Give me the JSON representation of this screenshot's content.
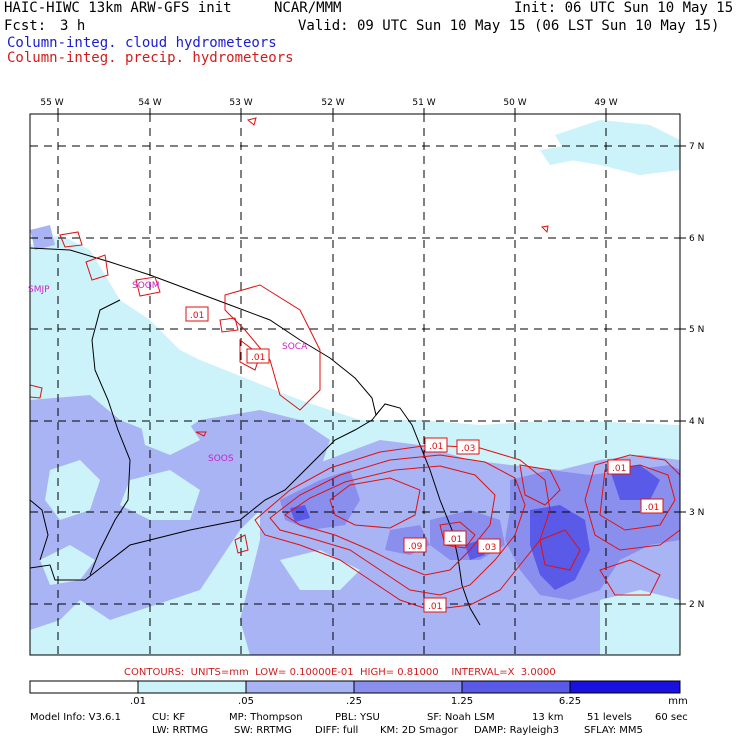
{
  "header": {
    "title_left": "HAIC-HIWC 13km ARW-GFS init",
    "org": "NCAR/MMM",
    "init": "Init: 06 UTC Sun 10 May 15",
    "fcst_label": "Fcst:",
    "fcst_value": "3 h",
    "valid": "Valid: 09 UTC Sun 10 May 15 (06 LST Sun 10 May 15)",
    "field1": "Column-integ. cloud hydrometeors",
    "field2": "Column-integ. precip. hydrometeors"
  },
  "map": {
    "lon_labels": [
      "55 W",
      "54 W",
      "53 W",
      "52 W",
      "51 W",
      "50 W",
      "49 W"
    ],
    "lat_labels": [
      "7 N",
      "6 N",
      "5 N",
      "4 N",
      "3 N",
      "2 N"
    ],
    "stations": [
      "SMJP",
      "SOGM",
      "SOCA",
      "SOOS"
    ],
    "contour_labels": [
      ".01",
      ".01",
      ".01",
      ".03",
      ".01",
      ".01",
      ".09",
      ".01",
      ".03",
      ".01"
    ]
  },
  "contour_info": "CONTOURS:  UNITS=mm  LOW= 0.10000E-01  HIGH= 0.81000    INTERVAL=X  3.0000",
  "colorbar": {
    "labels": [
      ".01",
      ".05",
      ".25",
      "1.25",
      "6.25"
    ],
    "units": "mm",
    "colors": [
      "#ffffff",
      "#ccf2fa",
      "#a9b4f5",
      "#8a8fee",
      "#5a5ae8",
      "#1a10e0"
    ]
  },
  "footer": {
    "line1": [
      "Model Info: V3.6.1",
      "CU: KF",
      "MP: Thompson",
      "PBL: YSU",
      "SF: Noah LSM",
      "13 km",
      "51 levels",
      "60 sec"
    ],
    "line2": [
      "LW: RRTMG",
      "SW: RRTMG",
      "DIFF: full",
      "KM: 2D Smagor",
      "DAMP: Rayleigh3",
      "SFLAY: MM5"
    ]
  }
}
